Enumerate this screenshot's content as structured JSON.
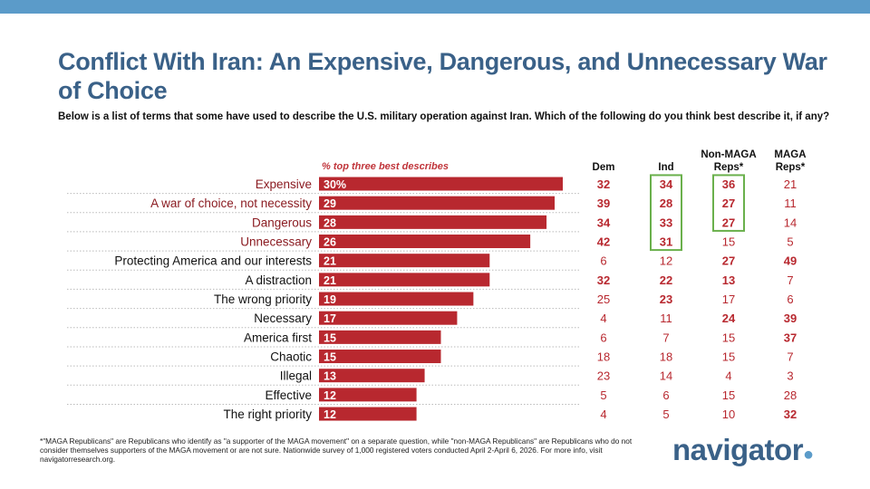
{
  "header": {
    "title": "Conflict With Iran: An Expensive, Dangerous, and Unnecessary War of Choice",
    "subtitle": "Below is a list of terms that some have used to describe the U.S. military operation against Iran. Which of the following do you think best describe it, if any?"
  },
  "colors": {
    "bar": "#b8282f",
    "highlight_label": "#8b1c22",
    "top_bar": "#5b9bc9",
    "title": "#3a6188",
    "box": "#6ab04c",
    "table_text": "#b8282f"
  },
  "chart_data": {
    "type": "bar",
    "orientation": "horizontal",
    "bar_caption": "% top three best describes",
    "xlim": [
      0,
      30
    ],
    "categories": [
      "Expensive",
      "A war of choice, not necessity",
      "Dangerous",
      "Unnecessary",
      "Protecting America and our interests",
      "A distraction",
      "The wrong priority",
      "Necessary",
      "America first",
      "Chaotic",
      "Illegal",
      "Effective",
      "The right priority"
    ],
    "values": [
      30,
      29,
      28,
      26,
      21,
      21,
      19,
      17,
      15,
      15,
      13,
      12,
      12
    ],
    "value_labels": [
      "30%",
      "29",
      "28",
      "26",
      "21",
      "21",
      "19",
      "17",
      "15",
      "15",
      "13",
      "12",
      "12"
    ],
    "highlighted_categories": [
      0,
      1,
      2,
      3
    ],
    "table": {
      "columns": [
        {
          "header": "Dem",
          "values": [
            32,
            39,
            34,
            42,
            6,
            32,
            25,
            4,
            6,
            18,
            23,
            5,
            4
          ],
          "bold": [
            0,
            1,
            2,
            3,
            5
          ]
        },
        {
          "header": "Ind",
          "values": [
            34,
            28,
            33,
            31,
            12,
            22,
            23,
            11,
            7,
            18,
            14,
            6,
            5
          ],
          "bold": [
            0,
            1,
            2,
            3,
            5,
            6
          ],
          "boxed": [
            0,
            3
          ]
        },
        {
          "header": "Non-MAGA Reps*",
          "values": [
            36,
            27,
            27,
            15,
            27,
            13,
            17,
            24,
            15,
            15,
            4,
            15,
            10
          ],
          "bold": [
            0,
            1,
            2,
            4,
            5,
            7
          ],
          "boxed": [
            0,
            2
          ]
        },
        {
          "header": "MAGA Reps*",
          "values": [
            21,
            11,
            14,
            5,
            49,
            7,
            6,
            39,
            37,
            7,
            3,
            28,
            32
          ],
          "bold": [
            4,
            7,
            8,
            12
          ]
        }
      ]
    }
  },
  "footer": {
    "footnote": "*\"MAGA Republicans\" are Republicans who identify as \"a supporter of the MAGA movement\" on a separate question, while \"non-MAGA Republicans\" are Republicans who do not consider themselves supporters of the MAGA movement or are not sure. Nationwide survey of 1,000 registered voters conducted April 2-April 6, 2026. For more info, visit navigatorresearch.org.",
    "logo_text": "navigator"
  }
}
